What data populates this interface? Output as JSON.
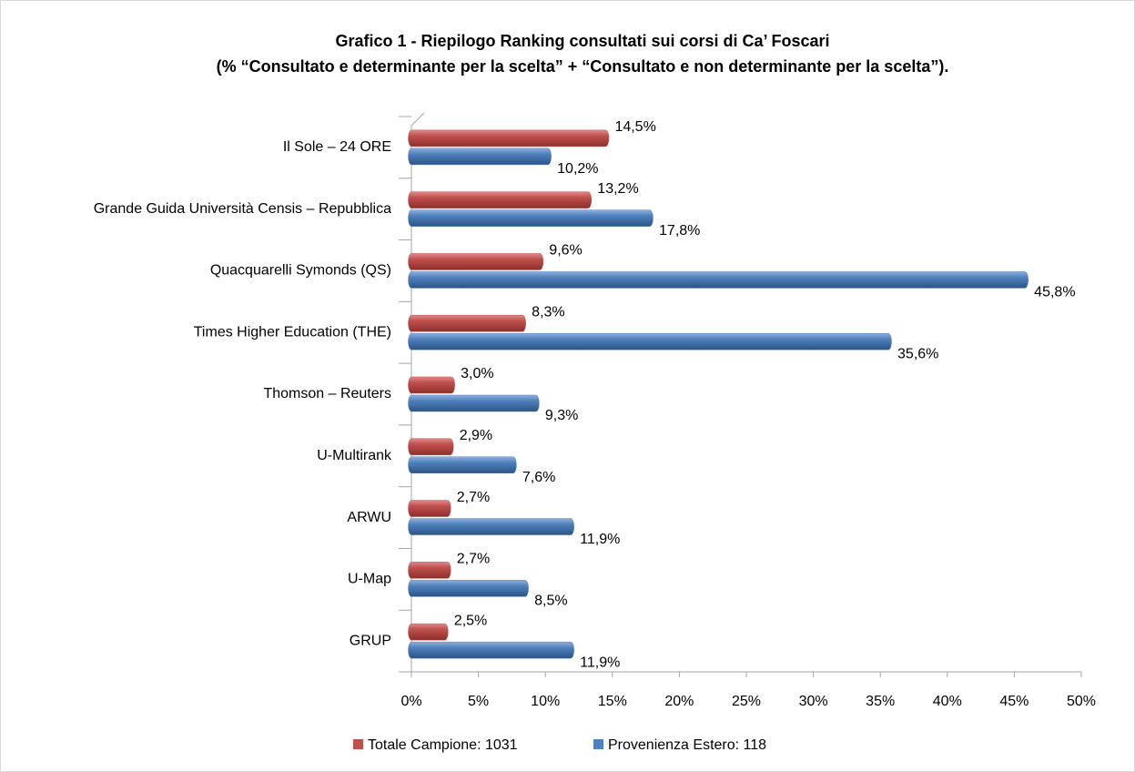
{
  "chart_data": {
    "type": "bar",
    "orientation": "horizontal",
    "title": "Grafico 1 - Riepilogo Ranking consultati sui corsi di Ca’ Foscari",
    "subtitle": "(% “Consultato e determinante per la scelta” + “Consultato e non determinante per la scelta”).",
    "categories": [
      "Il Sole – 24 ORE",
      "Grande Guida Università Censis – Repubblica",
      "Quacquarelli Symonds (QS)",
      "Times Higher Education (THE)",
      "Thomson – Reuters",
      "U-Multirank",
      "ARWU",
      "U-Map",
      "GRUP"
    ],
    "series": [
      {
        "name": "Totale Campione: 1031",
        "color": "#c0504d",
        "values": [
          14.5,
          13.2,
          9.6,
          8.3,
          3.0,
          2.9,
          2.7,
          2.7,
          2.5
        ],
        "value_labels": [
          "14,5%",
          "13,2%",
          "9,6%",
          "8,3%",
          "3,0%",
          "2,9%",
          "2,7%",
          "2,7%",
          "2,5%"
        ]
      },
      {
        "name": "Provenienza Estero: 118",
        "color": "#4f81bd",
        "values": [
          10.2,
          17.8,
          45.8,
          35.6,
          9.3,
          7.6,
          11.9,
          8.5,
          11.9
        ],
        "value_labels": [
          "10,2%",
          "17,8%",
          "45,8%",
          "35,6%",
          "9,3%",
          "7,6%",
          "11,9%",
          "8,5%",
          "11,9%"
        ]
      }
    ],
    "xlim": [
      0,
      50
    ],
    "xticks": [
      {
        "value": 0,
        "label": "0%"
      },
      {
        "value": 5,
        "label": "5%"
      },
      {
        "value": 10,
        "label": "10%"
      },
      {
        "value": 15,
        "label": "15%"
      },
      {
        "value": 20,
        "label": "20%"
      },
      {
        "value": 25,
        "label": "25%"
      },
      {
        "value": 30,
        "label": "30%"
      },
      {
        "value": 35,
        "label": "35%"
      },
      {
        "value": 40,
        "label": "40%"
      },
      {
        "value": 45,
        "label": "45%"
      },
      {
        "value": 50,
        "label": "50%"
      }
    ],
    "grid": false,
    "legend": "bottom"
  }
}
